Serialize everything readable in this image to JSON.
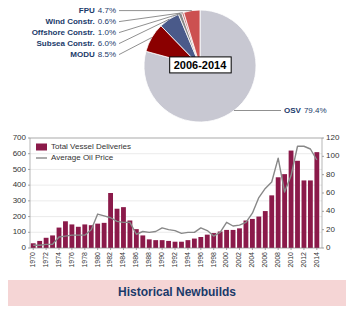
{
  "chart_data": [
    {
      "type": "pie",
      "title": "2006-2014",
      "categories": [
        "OSV",
        "MODU",
        "Subsea Constr.",
        "Offshore Constr.",
        "Wind Constr.",
        "FPU"
      ],
      "values": [
        79.4,
        8.5,
        6.0,
        1.0,
        0.6,
        4.7
      ],
      "value_labels": [
        "79.4%",
        "8.5%",
        "6.0%",
        "1.0%",
        "0.6%",
        "4.7%"
      ],
      "data_labels": true,
      "colors": [
        "#c8c8d2",
        "#8b0000",
        "#4a5a8a",
        "#888888",
        "#c87878",
        "#cc5050"
      ]
    },
    {
      "type": "bar",
      "x": [
        1970,
        1971,
        1972,
        1973,
        1974,
        1975,
        1976,
        1977,
        1978,
        1979,
        1980,
        1981,
        1982,
        1983,
        1984,
        1985,
        1986,
        1987,
        1988,
        1989,
        1990,
        1991,
        1992,
        1993,
        1994,
        1995,
        1996,
        1997,
        1998,
        1999,
        2000,
        2001,
        2002,
        2003,
        2004,
        2005,
        2006,
        2007,
        2008,
        2009,
        2010,
        2011,
        2012,
        2013,
        2014
      ],
      "series": [
        {
          "name": "Total Vessel Deliveries",
          "type": "bar",
          "color": "#8b1a4a",
          "values": [
            30,
            45,
            65,
            80,
            130,
            170,
            150,
            135,
            150,
            145,
            155,
            160,
            350,
            250,
            260,
            175,
            120,
            80,
            55,
            50,
            50,
            45,
            40,
            40,
            50,
            60,
            70,
            85,
            95,
            105,
            115,
            115,
            125,
            175,
            185,
            200,
            235,
            335,
            450,
            470,
            620,
            555,
            430,
            430,
            610
          ]
        },
        {
          "name": "Average Oil Price",
          "type": "line",
          "color": "#888888",
          "axis": "y2",
          "values": [
            3,
            3,
            4,
            4,
            12,
            13,
            14,
            14,
            14,
            20,
            37,
            35,
            33,
            29,
            28,
            28,
            15,
            18,
            17,
            18,
            22,
            20,
            19,
            16,
            17,
            17,
            22,
            19,
            13,
            17,
            28,
            24,
            25,
            28,
            38,
            55,
            65,
            72,
            98,
            61,
            79,
            111,
            111,
            108,
            96
          ]
        }
      ],
      "xlim": [
        1969.5,
        2014.8
      ],
      "xticks": [
        1970,
        1972,
        1974,
        1976,
        1978,
        1980,
        1982,
        1984,
        1986,
        1988,
        1990,
        1992,
        1994,
        1996,
        1998,
        2000,
        2002,
        2004,
        2006,
        2008,
        2010,
        2012,
        2014
      ],
      "ylim": [
        0,
        700
      ],
      "yticks": [
        0,
        100,
        200,
        300,
        400,
        500,
        600,
        700
      ],
      "y2lim": [
        0,
        120
      ],
      "y2ticks": [
        0,
        20,
        40,
        60,
        80,
        100,
        120
      ],
      "grid": true,
      "legend": "upper left",
      "annotations": [
        "Historical Newbuilds"
      ]
    }
  ]
}
